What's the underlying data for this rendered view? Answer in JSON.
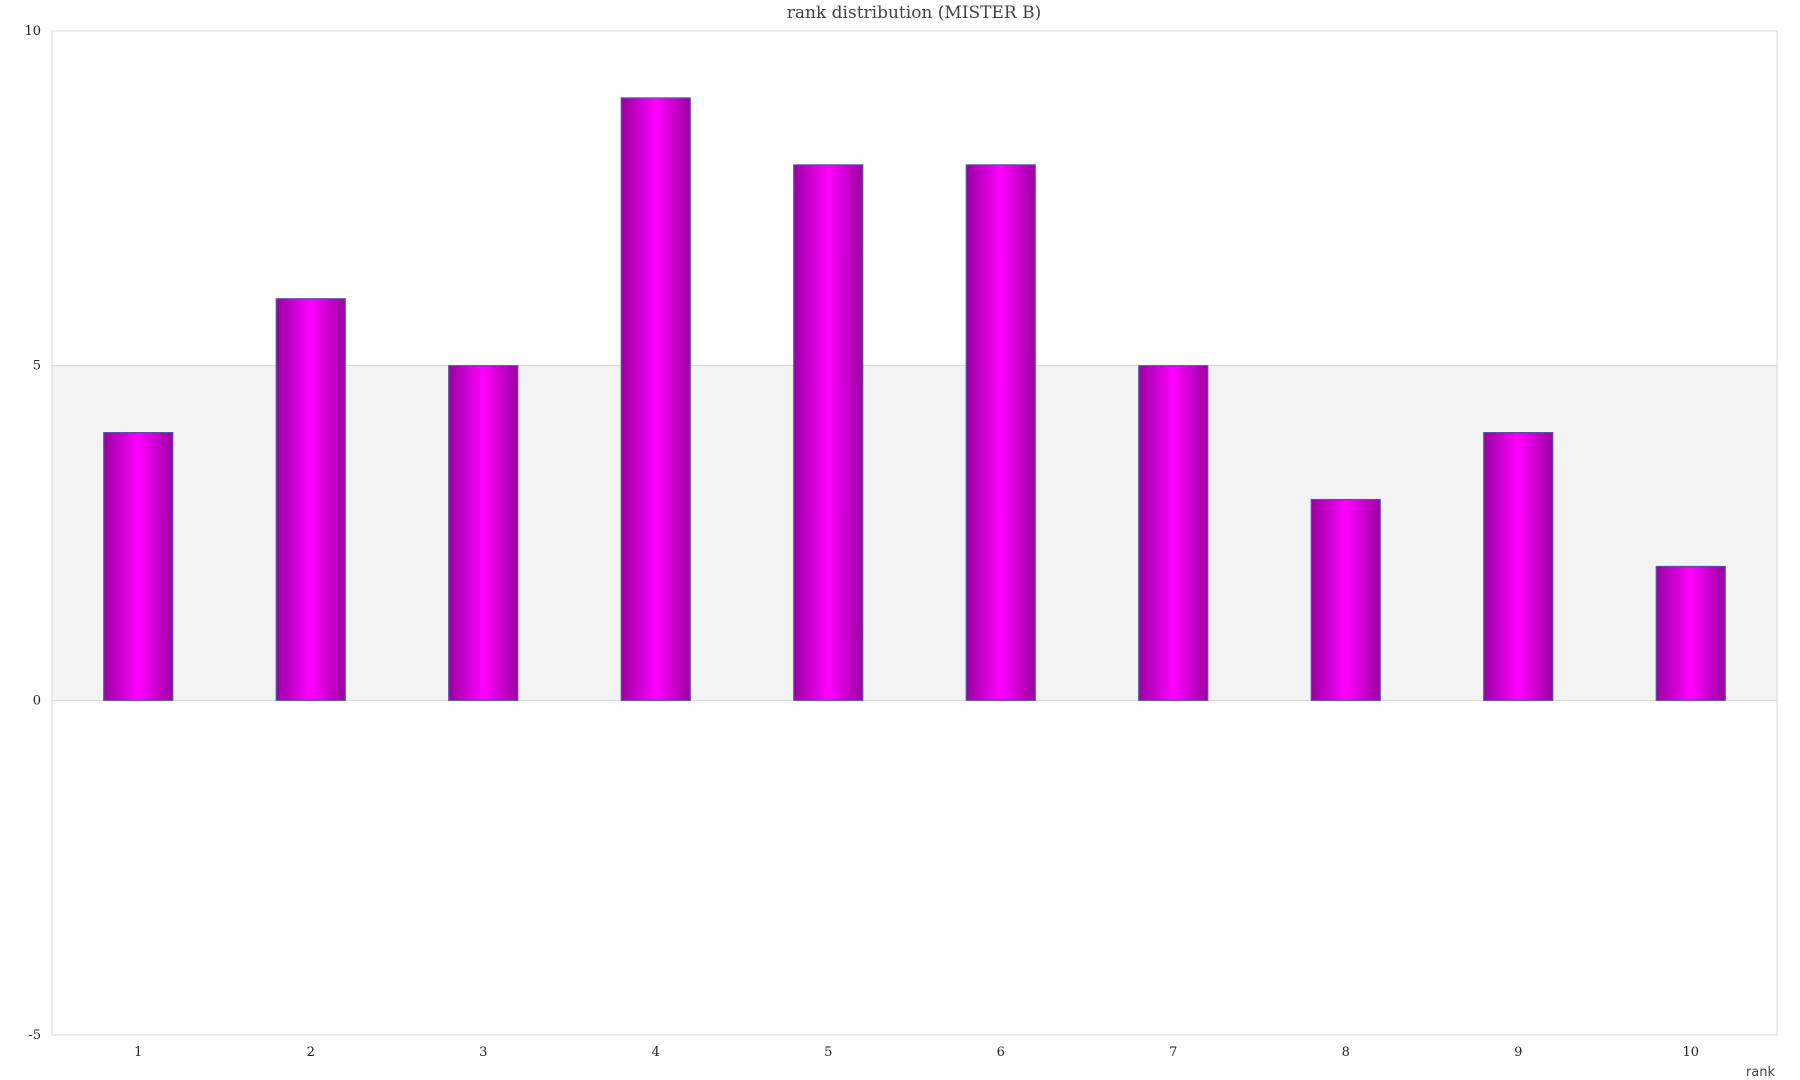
{
  "chart_data": {
    "type": "bar",
    "title": "rank distribution (MISTER B)",
    "xlabel": "rank",
    "ylabel": "",
    "categories": [
      "1",
      "2",
      "3",
      "4",
      "5",
      "6",
      "7",
      "8",
      "9",
      "10"
    ],
    "values": [
      4,
      6,
      5,
      9,
      8,
      8,
      5,
      3,
      4,
      2
    ],
    "ylim": [
      -5,
      10
    ],
    "yticks": [
      "-5",
      "0",
      "5",
      "10"
    ],
    "grid": true,
    "legend": "none",
    "colors": {
      "bar_edge": "#9a00a0",
      "bar_center": "#ff00ff",
      "bar_stroke": "#5a4fa8",
      "band": "#f3f3f3",
      "frame": "#d8d8d8"
    }
  }
}
